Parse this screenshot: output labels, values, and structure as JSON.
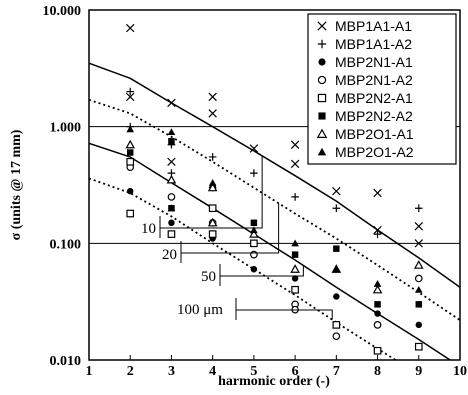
{
  "chart_data": {
    "type": "scatter",
    "xlabel": "harmonic order (-)",
    "ylabel": "σ (units @ 17 mm)",
    "xlim": [
      1,
      10
    ],
    "ylim": [
      0.01,
      10
    ],
    "y_scale": "log",
    "x_ticks": [
      "1",
      "2",
      "3",
      "4",
      "5",
      "6",
      "7",
      "8",
      "9",
      "10"
    ],
    "y_ticks": [
      {
        "value": 10,
        "label": "10.000"
      },
      {
        "value": 1,
        "label": "1.000"
      },
      {
        "value": 0.1,
        "label": "0.100"
      },
      {
        "value": 0.01,
        "label": "0.010"
      }
    ],
    "legend_position": "top-right",
    "series": [
      {
        "name": "MBP1A1-A1",
        "marker": "x",
        "points": [
          [
            2,
            7.0
          ],
          [
            2,
            1.8
          ],
          [
            3,
            1.6
          ],
          [
            3,
            0.5
          ],
          [
            4,
            1.8
          ],
          [
            4,
            1.3
          ],
          [
            5,
            0.65
          ],
          [
            6,
            0.7
          ],
          [
            6,
            0.48
          ],
          [
            7,
            0.28
          ],
          [
            8,
            0.27
          ],
          [
            8,
            0.13
          ],
          [
            9,
            0.14
          ],
          [
            9,
            0.1
          ]
        ]
      },
      {
        "name": "MBP1A1-A2",
        "marker": "+",
        "points": [
          [
            2,
            2.0
          ],
          [
            2,
            1.0
          ],
          [
            3,
            0.7
          ],
          [
            3,
            0.4
          ],
          [
            4,
            0.55
          ],
          [
            4,
            0.3
          ],
          [
            5,
            0.4
          ],
          [
            6,
            0.25
          ],
          [
            7,
            0.2
          ],
          [
            8,
            0.12
          ],
          [
            9,
            0.2
          ]
        ]
      },
      {
        "name": "MBP2N1-A1",
        "marker": "filled-circle",
        "points": [
          [
            2,
            0.28
          ],
          [
            3,
            0.15
          ],
          [
            4,
            0.11
          ],
          [
            5,
            0.06
          ],
          [
            6,
            0.05
          ],
          [
            7,
            0.035
          ],
          [
            8,
            0.025
          ],
          [
            9,
            0.02
          ]
        ]
      },
      {
        "name": "MBP2N1-A2",
        "marker": "open-circle",
        "points": [
          [
            2,
            0.45
          ],
          [
            3,
            0.25
          ],
          [
            4,
            0.15
          ],
          [
            5,
            0.08
          ],
          [
            6,
            0.03
          ],
          [
            6,
            0.027
          ],
          [
            7,
            0.016
          ],
          [
            8,
            0.02
          ],
          [
            9,
            0.05
          ]
        ]
      },
      {
        "name": "MBP2N2-A1",
        "marker": "open-square",
        "points": [
          [
            2,
            0.18
          ],
          [
            2,
            0.5
          ],
          [
            3,
            0.12
          ],
          [
            4,
            0.12
          ],
          [
            4,
            0.2
          ],
          [
            5,
            0.1
          ],
          [
            6,
            0.04
          ],
          [
            7,
            0.02
          ],
          [
            8,
            0.012
          ],
          [
            9,
            0.013
          ]
        ]
      },
      {
        "name": "MBP2N2-A2",
        "marker": "filled-square",
        "points": [
          [
            2,
            0.6
          ],
          [
            3,
            0.75
          ],
          [
            3,
            0.2
          ],
          [
            4,
            0.3
          ],
          [
            5,
            0.15
          ],
          [
            6,
            0.08
          ],
          [
            7,
            0.09
          ],
          [
            8,
            0.03
          ],
          [
            9,
            0.03
          ]
        ]
      },
      {
        "name": "MBP2O1-A1",
        "marker": "open-triangle",
        "points": [
          [
            2,
            0.7
          ],
          [
            3,
            0.35
          ],
          [
            4,
            0.3
          ],
          [
            4,
            0.15
          ],
          [
            5,
            0.12
          ],
          [
            6,
            0.06
          ],
          [
            7,
            0.06
          ],
          [
            8,
            0.04
          ],
          [
            9,
            0.065
          ]
        ]
      },
      {
        "name": "MBP2O1-A2",
        "marker": "filled-triangle",
        "points": [
          [
            2,
            0.95
          ],
          [
            3,
            0.9
          ],
          [
            3,
            0.2
          ],
          [
            4,
            0.33
          ],
          [
            5,
            0.13
          ],
          [
            6,
            0.1
          ],
          [
            7,
            0.06
          ],
          [
            8,
            0.045
          ],
          [
            9,
            0.04
          ]
        ]
      }
    ],
    "reference_curves": [
      {
        "label": "10",
        "style": "solid",
        "points": [
          [
            1,
            3.5
          ],
          [
            2,
            2.6
          ],
          [
            3,
            1.6
          ],
          [
            4,
            1.0
          ],
          [
            5,
            0.62
          ],
          [
            6,
            0.38
          ],
          [
            7,
            0.23
          ],
          [
            8,
            0.13
          ],
          [
            9,
            0.075
          ],
          [
            10,
            0.042
          ]
        ]
      },
      {
        "label": "20",
        "style": "dotted",
        "points": [
          [
            1,
            1.7
          ],
          [
            2,
            1.3
          ],
          [
            3,
            0.82
          ],
          [
            4,
            0.5
          ],
          [
            5,
            0.3
          ],
          [
            6,
            0.18
          ],
          [
            7,
            0.11
          ],
          [
            8,
            0.065
          ],
          [
            9,
            0.038
          ],
          [
            10,
            0.022
          ]
        ]
      },
      {
        "label": "50",
        "style": "solid",
        "points": [
          [
            1,
            0.72
          ],
          [
            2,
            0.55
          ],
          [
            3,
            0.33
          ],
          [
            4,
            0.2
          ],
          [
            5,
            0.12
          ],
          [
            6,
            0.072
          ],
          [
            7,
            0.042
          ],
          [
            8,
            0.025
          ],
          [
            9,
            0.015
          ],
          [
            10,
            0.0088
          ]
        ]
      },
      {
        "label": "100 μm",
        "style": "dotted",
        "points": [
          [
            1,
            0.36
          ],
          [
            2,
            0.27
          ],
          [
            3,
            0.17
          ],
          [
            4,
            0.1
          ],
          [
            5,
            0.06
          ],
          [
            6,
            0.036
          ],
          [
            7,
            0.021
          ],
          [
            8,
            0.0125
          ],
          [
            9,
            0.0075
          ],
          [
            10,
            0.0045
          ]
        ]
      }
    ]
  }
}
